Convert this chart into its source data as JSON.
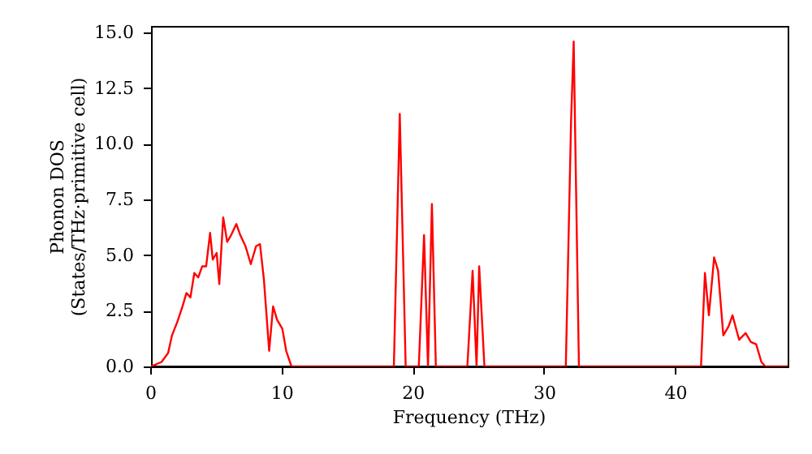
{
  "chart_data": {
    "type": "line",
    "xlabel": "Frequency (THz)",
    "ylabel": "Phonon DOS\n(States/THz·primitive cell)",
    "series": [
      {
        "color": "#ff0000",
        "x": [
          0,
          0.8,
          1.3,
          1.6,
          2.0,
          2.4,
          2.7,
          3.0,
          3.3,
          3.6,
          3.9,
          4.2,
          4.5,
          4.7,
          5.0,
          5.2,
          5.5,
          5.8,
          6.1,
          6.5,
          6.8,
          7.2,
          7.6,
          8.0,
          8.3,
          8.6,
          9.0,
          9.3,
          9.6,
          10.0,
          10.3,
          10.7,
          11.0,
          18.5,
          18.95,
          19.4,
          20.4,
          20.8,
          21.1,
          21.4,
          21.7,
          24.1,
          24.5,
          24.8,
          25.0,
          25.4,
          31.6,
          32.0,
          32.2,
          32.6,
          41.9,
          42.2,
          42.5,
          42.9,
          43.2,
          43.6,
          44.0,
          44.3,
          44.8,
          45.3,
          45.7,
          46.1,
          46.5,
          46.8,
          48.5
        ],
        "values": [
          0,
          0.2,
          0.6,
          1.4,
          2.0,
          2.7,
          3.3,
          3.1,
          4.2,
          4.0,
          4.5,
          4.5,
          6.0,
          4.8,
          5.1,
          3.7,
          6.7,
          5.6,
          5.9,
          6.4,
          5.9,
          5.4,
          4.6,
          5.4,
          5.5,
          3.9,
          0.7,
          2.7,
          2.1,
          1.7,
          0.7,
          0,
          0,
          0,
          11.35,
          0,
          0,
          5.9,
          0,
          7.3,
          0,
          0,
          4.3,
          0,
          4.5,
          0,
          0,
          11.0,
          14.6,
          0,
          0,
          4.2,
          2.3,
          4.9,
          4.3,
          1.4,
          1.8,
          2.3,
          1.2,
          1.5,
          1.1,
          1.0,
          0.2,
          0,
          0
        ]
      }
    ],
    "xlim": [
      0,
      48.5
    ],
    "ylim": [
      0,
      15.3
    ],
    "xticks": [
      0,
      10,
      20,
      30,
      40
    ],
    "yticks": [
      {
        "value": 0,
        "label": "0.0"
      },
      {
        "value": 2.5,
        "label": "2.5"
      },
      {
        "value": 5,
        "label": "5.0"
      },
      {
        "value": 7.5,
        "label": "7.5"
      },
      {
        "value": 10,
        "label": "10.0"
      },
      {
        "value": 12.5,
        "label": "12.5"
      },
      {
        "value": 15,
        "label": "15.0"
      }
    ],
    "grid": false,
    "marker": "none",
    "line_style": "solid"
  }
}
